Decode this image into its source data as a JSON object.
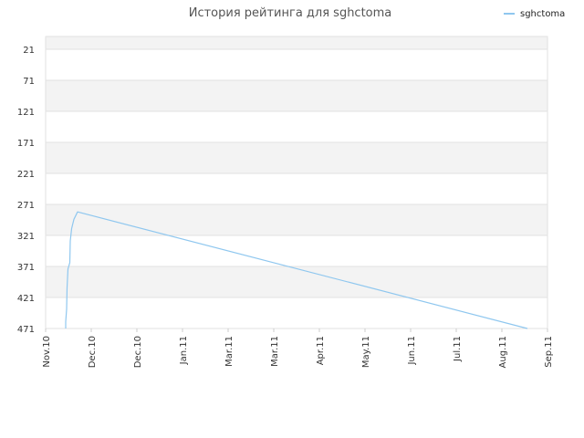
{
  "chart_data": {
    "type": "line",
    "title": "История рейтинга для sghctoma",
    "xlabel": "",
    "ylabel": "",
    "y_inverted": true,
    "ylim": [
      21,
      471
    ],
    "y_ticks": [
      "21",
      "71",
      "121",
      "171",
      "221",
      "271",
      "321",
      "371",
      "421",
      "471"
    ],
    "x_ticks": [
      "Nov.10",
      "Dec.10",
      "Dec.10",
      "Jan.11",
      "Mar.11",
      "Mar.11",
      "Apr.11",
      "May.11",
      "Jun.11",
      "Jul.11",
      "Aug.11",
      "Sep.11"
    ],
    "legend_position": "top-right",
    "grid": true,
    "series": [
      {
        "name": "sghctoma",
        "color": "#8fc7ef",
        "points": [
          {
            "x": 0.44,
            "y": 471
          },
          {
            "x": 0.44,
            "y": 460
          },
          {
            "x": 0.46,
            "y": 440
          },
          {
            "x": 0.47,
            "y": 405
          },
          {
            "x": 0.49,
            "y": 375
          },
          {
            "x": 0.53,
            "y": 365
          },
          {
            "x": 0.54,
            "y": 330
          },
          {
            "x": 0.57,
            "y": 310
          },
          {
            "x": 0.62,
            "y": 295
          },
          {
            "x": 0.7,
            "y": 283
          },
          {
            "x": 10.56,
            "y": 471
          }
        ]
      }
    ]
  }
}
